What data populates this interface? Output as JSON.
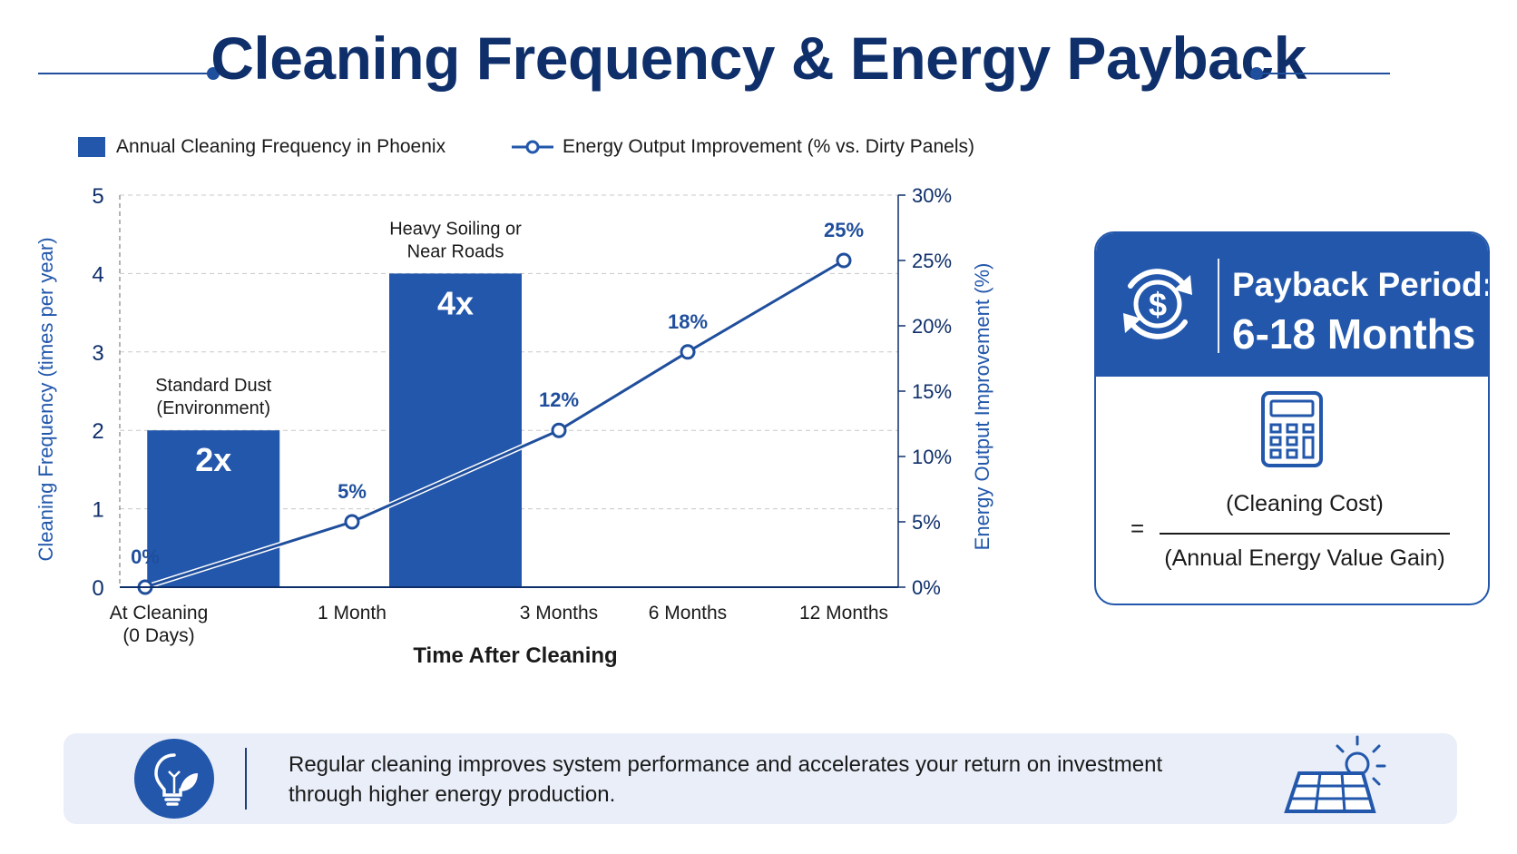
{
  "title": "Cleaning Frequency & Energy Payback",
  "legend": {
    "bars": "Annual Cleaning Frequency in Phoenix",
    "line": "Energy Output Improvement  (% vs. Dirty Panels)"
  },
  "chart_data": {
    "type": "bar",
    "x_label": "Time After Cleaning",
    "y_left_label": "Cleaning Frequency (times per year)",
    "y_right_label": "Energy Output Improvement (%)",
    "categories": [
      "At Cleaning\n(0 Days)",
      "1 Month",
      "3 Months",
      "6 Months",
      "12 Months"
    ],
    "y_left_range": [
      0,
      5
    ],
    "y_left_ticks": [
      "0",
      "1",
      "2",
      "3",
      "4",
      "5"
    ],
    "y_right_range": [
      0,
      30
    ],
    "y_right_ticks": [
      "0%",
      "5%",
      "10%",
      "15%",
      "20%",
      "25%",
      "30%"
    ],
    "grid": true,
    "bars": [
      {
        "value": 2,
        "label": "2x",
        "annotation": "Standard Dust\n(Environment)",
        "x_position": 0.33
      },
      {
        "value": 4,
        "label": "4x",
        "annotation": "Heavy Soiling or\nNear Roads",
        "x_position": 1.5
      }
    ],
    "line_series": {
      "name": "Energy Output Improvement  (% vs. Dirty Panels)",
      "values": [
        0,
        5,
        12,
        18,
        25
      ],
      "labels": [
        "0%",
        "5%",
        "12%",
        "18%",
        "25%"
      ]
    }
  },
  "payback": {
    "title": "Payback Period:",
    "value": "6-18 Months",
    "equals": "=",
    "numerator": "(Cleaning Cost)",
    "denominator": "(Annual Energy Value Gain)"
  },
  "footer": {
    "text": "Regular cleaning improves system performance and accelerates your return on investment through higher energy production."
  },
  "colors": {
    "primary": "#2257ab",
    "title": "#0f2f6b"
  },
  "icons": [
    "dollar-cycle-icon",
    "calculator-icon",
    "lightbulb-leaf-icon",
    "solar-panel-icon"
  ]
}
